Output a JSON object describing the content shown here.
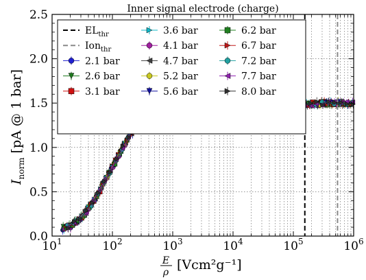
{
  "chart_data": {
    "type": "line",
    "title": "Inner signal electrode (charge)",
    "xlabel": {
      "frac_num": "E",
      "frac_den": "ρ",
      "unit": "[Vcm²g⁻¹]"
    },
    "ylabel": {
      "main": "I",
      "sub": "norm",
      "unit": "[pA @ 1 bar]"
    },
    "x_scale": "log",
    "xlim": [
      10,
      1000000
    ],
    "ylim": [
      0.0,
      2.5
    ],
    "x_ticks": [
      {
        "value": 10,
        "base": "10",
        "exp": "1"
      },
      {
        "value": 100,
        "base": "10",
        "exp": "2"
      },
      {
        "value": 1000,
        "base": "10",
        "exp": "3"
      },
      {
        "value": 10000,
        "base": "10",
        "exp": "4"
      },
      {
        "value": 100000,
        "base": "10",
        "exp": "5"
      },
      {
        "value": 1000000,
        "base": "10",
        "exp": "6"
      }
    ],
    "y_ticks": [
      {
        "value": 0.0,
        "label": "0.0"
      },
      {
        "value": 0.5,
        "label": "0.5"
      },
      {
        "value": 1.0,
        "label": "1.0"
      },
      {
        "value": 1.5,
        "label": "1.5"
      },
      {
        "value": 2.0,
        "label": "2.0"
      },
      {
        "value": 2.5,
        "label": "2.5"
      }
    ],
    "grid": true,
    "legend_position": "top-left",
    "thresholds": [
      {
        "base": "EL",
        "sub": "thr",
        "x": 155000,
        "color": "#000000",
        "dash": "long"
      },
      {
        "base": "Ion",
        "sub": "thr",
        "x": 540000,
        "color": "#888888",
        "dash": "long"
      }
    ],
    "curve_x": [
      15,
      20,
      30,
      50,
      70,
      100,
      150,
      200,
      300,
      500,
      700,
      1000,
      1500,
      2000,
      3000,
      5000,
      10000,
      20000,
      50000,
      100000,
      200000,
      400000,
      700000,
      1000000
    ],
    "curve_y": [
      0.09,
      0.11,
      0.2,
      0.4,
      0.58,
      0.78,
      1.0,
      1.15,
      1.28,
      1.35,
      1.38,
      1.4,
      1.41,
      1.42,
      1.43,
      1.44,
      1.45,
      1.46,
      1.47,
      1.48,
      1.49,
      1.5,
      1.5,
      1.49
    ],
    "series": [
      {
        "name": "2.1 bar",
        "color": "#1f1fd0",
        "marker": "o"
      },
      {
        "name": "2.6 bar",
        "color": "#1e7a1e",
        "marker": "v"
      },
      {
        "name": "3.1 bar",
        "color": "#d01010",
        "marker": "s"
      },
      {
        "name": "3.6 bar",
        "color": "#10b8c8",
        "marker": ">"
      },
      {
        "name": "4.1 bar",
        "color": "#a020a0",
        "marker": "o"
      },
      {
        "name": "4.7 bar",
        "color": "#404040",
        "marker": "<"
      },
      {
        "name": "5.2 bar",
        "color": "#c8c820",
        "marker": "o"
      },
      {
        "name": "5.6 bar",
        "color": "#1010a0",
        "marker": "v"
      },
      {
        "name": "6.2 bar",
        "color": "#208020",
        "marker": "s"
      },
      {
        "name": "6.7 bar",
        "color": "#c01818",
        "marker": ">"
      },
      {
        "name": "7.2 bar",
        "color": "#20a0a0",
        "marker": "p"
      },
      {
        "name": "7.7 bar",
        "color": "#9020b0",
        "marker": "<"
      },
      {
        "name": "8.0 bar",
        "color": "#303030",
        "marker": ">"
      }
    ]
  }
}
